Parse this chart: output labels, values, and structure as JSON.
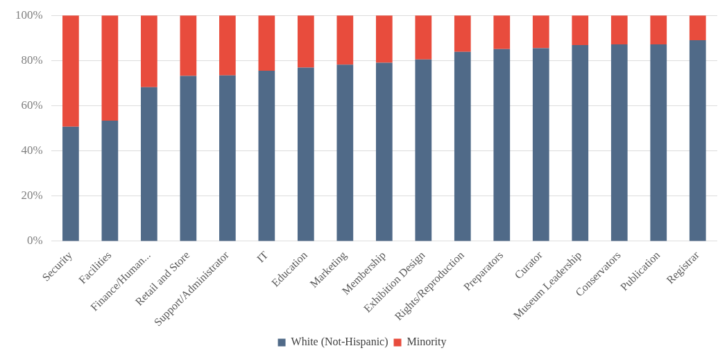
{
  "chart_data": {
    "type": "bar",
    "stacked": true,
    "categories": [
      "Security",
      "Facilities",
      "Finance/Human...",
      "Retail and Store",
      "Support/Administrator",
      "IT",
      "Education",
      "Marketing",
      "Membership",
      "Exhibition Design",
      "Rights/Reproduction",
      "Preparators",
      "Curator",
      "Museum Leadership",
      "Conservators",
      "Publication",
      "Registrar"
    ],
    "series": [
      {
        "name": "White (Not-Hispanic)",
        "color": "#506a88",
        "values": [
          50.7,
          53.4,
          68.2,
          73.2,
          73.4,
          75.5,
          76.9,
          78.2,
          79.0,
          80.5,
          83.9,
          85.1,
          85.5,
          86.9,
          87.2,
          87.2,
          89.0
        ]
      },
      {
        "name": "Minority",
        "color": "#e84c3d",
        "values": [
          49.3,
          46.6,
          31.8,
          26.8,
          26.6,
          24.5,
          23.1,
          21.8,
          21.0,
          19.5,
          16.1,
          14.9,
          14.5,
          13.1,
          12.8,
          12.8,
          11.0
        ]
      }
    ],
    "ylim": [
      0,
      100
    ],
    "yticks": [
      {
        "value": 0,
        "label": "0%"
      },
      {
        "value": 20,
        "label": "20%"
      },
      {
        "value": 40,
        "label": "40%"
      },
      {
        "value": 60,
        "label": "60%"
      },
      {
        "value": 80,
        "label": "80%"
      },
      {
        "value": 100,
        "label": "100%"
      }
    ],
    "grid": "y",
    "legend": "bottom"
  }
}
